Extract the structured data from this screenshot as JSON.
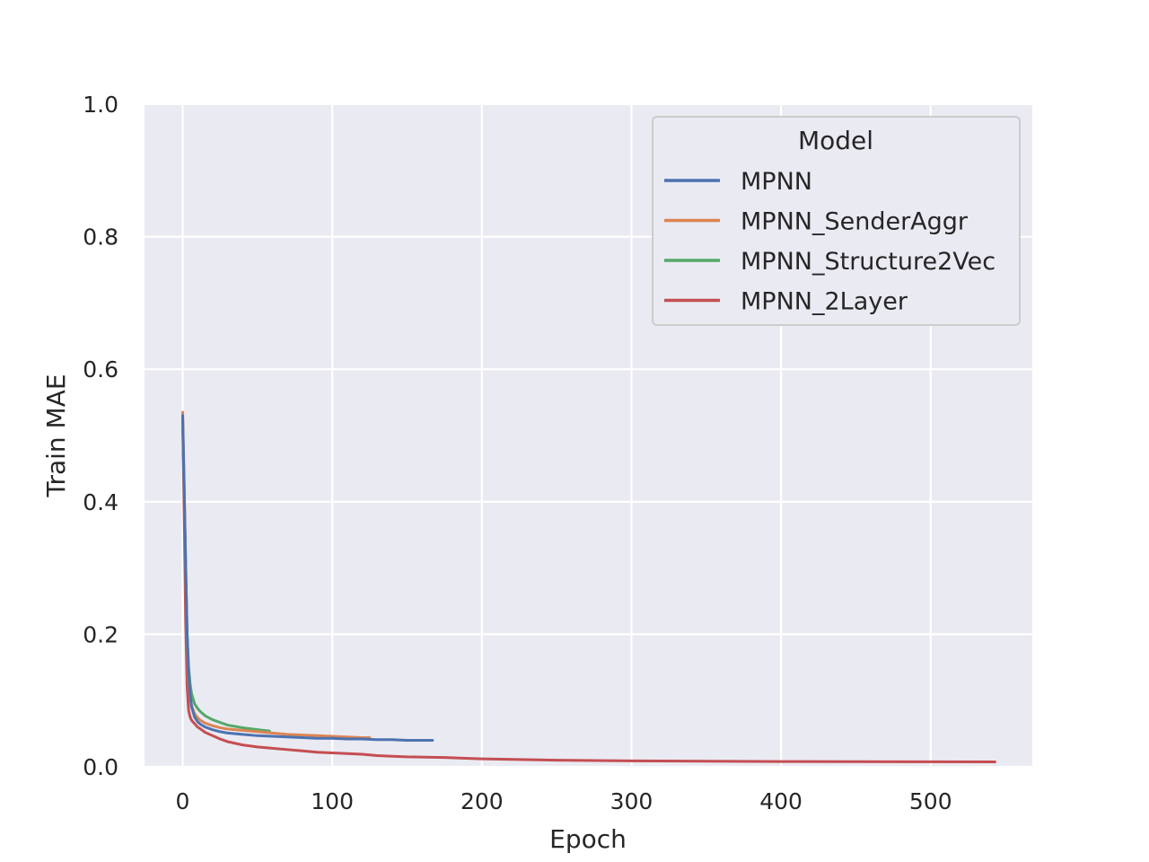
{
  "chart_data": {
    "type": "line",
    "title": "",
    "xlabel": "Epoch",
    "ylabel": "Train MAE",
    "xlim": [
      -25,
      570
    ],
    "ylim": [
      0.0,
      1.0
    ],
    "xticks": [
      0,
      100,
      200,
      300,
      400,
      500
    ],
    "yticks": [
      0.0,
      0.2,
      0.4,
      0.6,
      0.8,
      1.0
    ],
    "xtick_labels": [
      "0",
      "100",
      "200",
      "300",
      "400",
      "500"
    ],
    "ytick_labels": [
      "0.0",
      "0.2",
      "0.4",
      "0.6",
      "0.8",
      "1.0"
    ],
    "grid": true,
    "legend": {
      "title": "Model",
      "placement": "top-right"
    },
    "series": [
      {
        "name": "MPNN",
        "color": "#4c72b0",
        "x": [
          0,
          1,
          2,
          3,
          4,
          5,
          6,
          8,
          10,
          12,
          15,
          20,
          25,
          30,
          40,
          50,
          60,
          70,
          80,
          90,
          100,
          110,
          120,
          130,
          140,
          150,
          160,
          167
        ],
        "y": [
          0.53,
          0.42,
          0.3,
          0.2,
          0.14,
          0.11,
          0.09,
          0.075,
          0.068,
          0.064,
          0.06,
          0.056,
          0.053,
          0.051,
          0.049,
          0.047,
          0.046,
          0.045,
          0.044,
          0.043,
          0.043,
          0.042,
          0.042,
          0.041,
          0.041,
          0.04,
          0.04,
          0.04
        ]
      },
      {
        "name": "MPNN_SenderAggr",
        "color": "#dd8452",
        "x": [
          0,
          1,
          2,
          3,
          4,
          5,
          6,
          8,
          10,
          12,
          15,
          20,
          25,
          30,
          40,
          50,
          60,
          70,
          80,
          90,
          100,
          110,
          120,
          125
        ],
        "y": [
          0.535,
          0.43,
          0.3,
          0.19,
          0.13,
          0.105,
          0.092,
          0.08,
          0.074,
          0.07,
          0.066,
          0.062,
          0.059,
          0.057,
          0.055,
          0.053,
          0.051,
          0.049,
          0.048,
          0.047,
          0.046,
          0.045,
          0.044,
          0.044
        ]
      },
      {
        "name": "MPNN_Structure2Vec",
        "color": "#55a868",
        "x": [
          0,
          1,
          2,
          3,
          4,
          5,
          6,
          8,
          10,
          12,
          15,
          20,
          25,
          30,
          40,
          50,
          58
        ],
        "y": [
          0.52,
          0.42,
          0.31,
          0.2,
          0.15,
          0.125,
          0.11,
          0.095,
          0.088,
          0.083,
          0.077,
          0.071,
          0.067,
          0.063,
          0.059,
          0.056,
          0.054
        ]
      },
      {
        "name": "MPNN_2Layer",
        "color": "#c44e52",
        "x": [
          0,
          1,
          2,
          3,
          4,
          5,
          6,
          8,
          10,
          12,
          15,
          20,
          25,
          30,
          40,
          50,
          60,
          70,
          80,
          90,
          100,
          110,
          120,
          130,
          140,
          150,
          175,
          200,
          225,
          250,
          275,
          300,
          350,
          400,
          450,
          500,
          543
        ],
        "y": [
          0.525,
          0.38,
          0.22,
          0.12,
          0.085,
          0.075,
          0.07,
          0.065,
          0.06,
          0.057,
          0.052,
          0.047,
          0.042,
          0.038,
          0.033,
          0.03,
          0.028,
          0.026,
          0.024,
          0.022,
          0.021,
          0.02,
          0.019,
          0.017,
          0.016,
          0.015,
          0.014,
          0.012,
          0.011,
          0.01,
          0.0095,
          0.009,
          0.0085,
          0.008,
          0.0078,
          0.0076,
          0.0075
        ]
      }
    ]
  }
}
